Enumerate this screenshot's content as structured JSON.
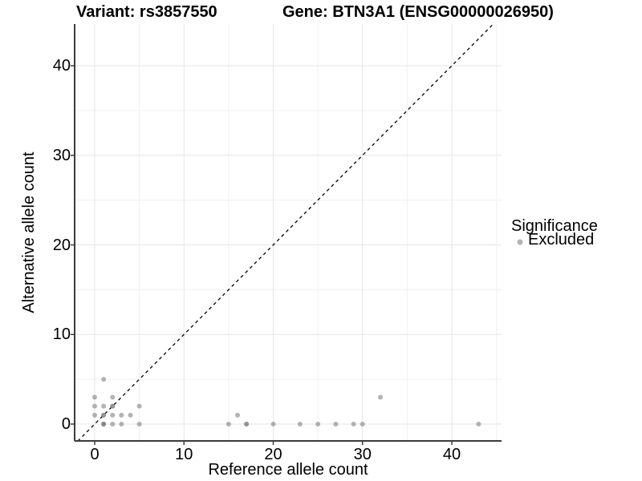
{
  "header": {
    "variant_title": "Variant: rs3857550",
    "gene_title": "Gene: BTN3A1 (ENSG00000026950)"
  },
  "legend": {
    "title": "Significance",
    "items": [
      {
        "label": "Excluded",
        "color": "rgba(128,128,128,0.6)"
      }
    ]
  },
  "chart_data": {
    "type": "scatter",
    "title": "Variant: rs3857550   Gene: BTN3A1 (ENSG00000026950)",
    "xlabel": "Reference allele count",
    "ylabel": "Alternative allele count",
    "xlim": [
      -2.25,
      45.6
    ],
    "ylim": [
      -1.9,
      44.7
    ],
    "x_major_ticks": [
      0,
      10,
      20,
      30,
      40
    ],
    "x_minor_ticks": [
      5,
      15,
      25,
      35,
      45
    ],
    "y_major_ticks": [
      0,
      10,
      20,
      30,
      40
    ],
    "y_minor_ticks": [
      5,
      15,
      25,
      35,
      45
    ],
    "grid": true,
    "legend_position": "right",
    "identity_line": {
      "slope": 1,
      "intercept": 0,
      "linetype": "dashed",
      "color": "#000000"
    },
    "series": [
      {
        "name": "Excluded",
        "color": "rgba(128,128,128,0.6)",
        "point_radius": 3,
        "points": [
          {
            "x": 0,
            "y": 1,
            "n": 1
          },
          {
            "x": 0,
            "y": 2,
            "n": 1
          },
          {
            "x": 0,
            "y": 3,
            "n": 1
          },
          {
            "x": 1,
            "y": 0,
            "n": 3
          },
          {
            "x": 1,
            "y": 1,
            "n": 2
          },
          {
            "x": 1,
            "y": 2,
            "n": 1
          },
          {
            "x": 1,
            "y": 5,
            "n": 1
          },
          {
            "x": 2,
            "y": 0,
            "n": 1
          },
          {
            "x": 2,
            "y": 1,
            "n": 1
          },
          {
            "x": 2,
            "y": 2,
            "n": 2
          },
          {
            "x": 2,
            "y": 3,
            "n": 1
          },
          {
            "x": 3,
            "y": 0,
            "n": 1
          },
          {
            "x": 3,
            "y": 1,
            "n": 1
          },
          {
            "x": 4,
            "y": 1,
            "n": 1
          },
          {
            "x": 5,
            "y": 0,
            "n": 1
          },
          {
            "x": 5,
            "y": 2,
            "n": 1
          },
          {
            "x": 15,
            "y": 0,
            "n": 1
          },
          {
            "x": 16,
            "y": 1,
            "n": 1
          },
          {
            "x": 17,
            "y": 0,
            "n": 2
          },
          {
            "x": 20,
            "y": 0,
            "n": 1
          },
          {
            "x": 23,
            "y": 0,
            "n": 1
          },
          {
            "x": 25,
            "y": 0,
            "n": 1
          },
          {
            "x": 27,
            "y": 0,
            "n": 1
          },
          {
            "x": 29,
            "y": 0,
            "n": 1
          },
          {
            "x": 30,
            "y": 0,
            "n": 1
          },
          {
            "x": 32,
            "y": 3,
            "n": 1
          },
          {
            "x": 43,
            "y": 0,
            "n": 1
          }
        ]
      }
    ]
  },
  "style": {
    "major_grid_color": "#e5e5e5",
    "minor_grid_color": "#f0f0f0",
    "axis_line_color": "#3c3c3c",
    "text_color": "#000000",
    "point_color": "rgba(128,128,128,0.6)"
  }
}
